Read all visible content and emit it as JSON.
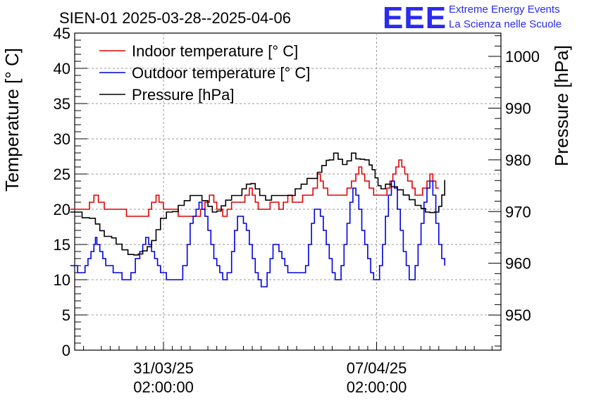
{
  "chart_data": {
    "type": "line",
    "title": "SIEN-01 2025-03-28--2025-04-06",
    "ylabel": "Temperature [° C]",
    "y2label": "Pressure [hPa]",
    "xlabel": "",
    "ylim": [
      0,
      45
    ],
    "y2lim": [
      943.2,
      1004.5
    ],
    "xlim": [
      -60,
      228
    ],
    "grid": true,
    "legend_position": "top-left",
    "y_ticks": [
      0,
      5,
      10,
      15,
      20,
      25,
      30,
      35,
      40,
      45
    ],
    "y_tick_labels": [
      "0",
      "5",
      "10",
      "15",
      "20",
      "25",
      "30",
      "35",
      "40",
      "45"
    ],
    "y2_ticks": [
      950,
      960,
      970,
      980,
      990,
      1000
    ],
    "y2_tick_labels": [
      "950",
      "960",
      "970",
      "980",
      "990",
      "1000"
    ],
    "x_ticks": [
      0,
      144
    ],
    "x_tick_labels": [
      {
        "date": "31/03/25",
        "time": "02:00:00"
      },
      {
        "date": "07/04/25",
        "time": "02:00:00"
      }
    ],
    "series": [
      {
        "name": "Indoor temperature [° C]",
        "color": "#e00000",
        "axis": "left",
        "points": [
          [
            -63,
            20
          ],
          [
            -55,
            20
          ],
          [
            -50,
            21
          ],
          [
            -47,
            22
          ],
          [
            -44,
            21
          ],
          [
            -40,
            20
          ],
          [
            -35,
            20
          ],
          [
            -30,
            20
          ],
          [
            -25,
            19
          ],
          [
            -20,
            19
          ],
          [
            -15,
            19
          ],
          [
            -10,
            20
          ],
          [
            -8,
            21
          ],
          [
            -5,
            22
          ],
          [
            -3,
            21
          ],
          [
            0,
            20
          ],
          [
            5,
            20
          ],
          [
            10,
            19
          ],
          [
            15,
            19
          ],
          [
            20,
            19
          ],
          [
            25,
            20
          ],
          [
            28,
            21
          ],
          [
            31,
            22
          ],
          [
            34,
            21
          ],
          [
            36,
            20
          ],
          [
            40,
            19
          ],
          [
            43,
            20
          ],
          [
            46,
            21
          ],
          [
            49,
            21
          ],
          [
            52,
            21
          ],
          [
            55,
            22
          ],
          [
            58,
            23
          ],
          [
            60,
            22
          ],
          [
            62,
            21
          ],
          [
            64,
            20
          ],
          [
            68,
            20
          ],
          [
            72,
            21
          ],
          [
            75,
            21
          ],
          [
            78,
            20
          ],
          [
            81,
            21
          ],
          [
            84,
            22
          ],
          [
            87,
            21
          ],
          [
            90,
            21
          ],
          [
            94,
            22
          ],
          [
            98,
            22
          ],
          [
            101,
            23
          ],
          [
            104,
            25
          ],
          [
            106,
            24
          ],
          [
            108,
            23
          ],
          [
            111,
            22
          ],
          [
            114,
            22
          ],
          [
            118,
            22
          ],
          [
            121,
            22
          ],
          [
            124,
            23
          ],
          [
            127,
            24
          ],
          [
            130,
            25
          ],
          [
            132,
            26
          ],
          [
            134,
            25
          ],
          [
            136,
            24
          ],
          [
            139,
            23
          ],
          [
            142,
            22
          ],
          [
            145,
            22
          ],
          [
            148,
            22
          ],
          [
            151,
            23
          ],
          [
            153,
            24
          ],
          [
            155,
            25
          ],
          [
            157,
            26
          ],
          [
            159,
            27
          ],
          [
            161,
            26
          ],
          [
            163,
            25
          ],
          [
            165,
            24
          ],
          [
            168,
            23
          ],
          [
            170,
            22
          ],
          [
            172,
            22
          ],
          [
            175,
            23
          ],
          [
            178,
            24
          ],
          [
            180,
            25
          ],
          [
            182,
            24
          ],
          [
            184,
            23
          ],
          [
            186,
            23
          ]
        ]
      },
      {
        "name": "Outdoor temperature [° C]",
        "color": "#0000e0",
        "axis": "left",
        "points": [
          [
            -63,
            12
          ],
          [
            -60,
            12
          ],
          [
            -58,
            11
          ],
          [
            -56,
            11
          ],
          [
            -53,
            12
          ],
          [
            -51,
            13
          ],
          [
            -49,
            14
          ],
          [
            -47,
            15
          ],
          [
            -46,
            16
          ],
          [
            -45,
            15
          ],
          [
            -43,
            14
          ],
          [
            -41,
            13
          ],
          [
            -39,
            12
          ],
          [
            -36,
            12
          ],
          [
            -34,
            11
          ],
          [
            -31,
            11
          ],
          [
            -28,
            10
          ],
          [
            -25,
            10
          ],
          [
            -22,
            11
          ],
          [
            -19,
            13
          ],
          [
            -16,
            14
          ],
          [
            -14,
            15
          ],
          [
            -12,
            16
          ],
          [
            -10,
            15
          ],
          [
            -8,
            14
          ],
          [
            -6,
            13
          ],
          [
            -4,
            12
          ],
          [
            -2,
            11
          ],
          [
            0,
            11
          ],
          [
            2,
            10
          ],
          [
            4,
            10
          ],
          [
            7,
            10
          ],
          [
            10,
            10
          ],
          [
            13,
            12
          ],
          [
            16,
            15
          ],
          [
            18,
            18
          ],
          [
            20,
            19
          ],
          [
            22,
            20
          ],
          [
            24,
            21
          ],
          [
            26,
            20
          ],
          [
            28,
            19
          ],
          [
            30,
            17
          ],
          [
            32,
            15
          ],
          [
            34,
            13
          ],
          [
            36,
            12
          ],
          [
            38,
            11
          ],
          [
            40,
            10
          ],
          [
            43,
            11
          ],
          [
            46,
            14
          ],
          [
            48,
            17
          ],
          [
            50,
            19
          ],
          [
            52,
            19
          ],
          [
            54,
            18
          ],
          [
            56,
            17
          ],
          [
            58,
            15
          ],
          [
            60,
            13
          ],
          [
            62,
            11
          ],
          [
            64,
            10
          ],
          [
            66,
            9
          ],
          [
            68,
            9
          ],
          [
            70,
            11
          ],
          [
            72,
            13
          ],
          [
            74,
            15
          ],
          [
            76,
            15
          ],
          [
            78,
            14
          ],
          [
            80,
            13
          ],
          [
            82,
            12
          ],
          [
            84,
            11
          ],
          [
            86,
            11
          ],
          [
            88,
            11
          ],
          [
            90,
            11
          ],
          [
            92,
            11
          ],
          [
            94,
            11
          ],
          [
            96,
            12
          ],
          [
            98,
            15
          ],
          [
            100,
            18
          ],
          [
            102,
            20
          ],
          [
            104,
            20
          ],
          [
            106,
            19
          ],
          [
            108,
            17
          ],
          [
            110,
            15
          ],
          [
            112,
            13
          ],
          [
            114,
            11
          ],
          [
            116,
            10
          ],
          [
            118,
            10
          ],
          [
            120,
            12
          ],
          [
            122,
            15
          ],
          [
            124,
            18
          ],
          [
            126,
            21
          ],
          [
            128,
            23
          ],
          [
            130,
            22
          ],
          [
            132,
            20
          ],
          [
            134,
            17
          ],
          [
            136,
            15
          ],
          [
            138,
            13
          ],
          [
            140,
            11
          ],
          [
            142,
            10
          ],
          [
            144,
            10
          ],
          [
            146,
            12
          ],
          [
            148,
            15
          ],
          [
            150,
            19
          ],
          [
            152,
            22
          ],
          [
            154,
            24
          ],
          [
            156,
            23
          ],
          [
            158,
            20
          ],
          [
            160,
            17
          ],
          [
            162,
            14
          ],
          [
            164,
            12
          ],
          [
            166,
            10
          ],
          [
            168,
            10
          ],
          [
            170,
            12
          ],
          [
            172,
            15
          ],
          [
            174,
            18
          ],
          [
            176,
            21
          ],
          [
            178,
            23
          ],
          [
            180,
            24
          ],
          [
            182,
            22
          ],
          [
            184,
            18
          ],
          [
            186,
            15
          ],
          [
            188,
            13
          ],
          [
            190,
            12
          ]
        ]
      },
      {
        "name": "Pressure [hPa]",
        "color": "#000000",
        "axis": "right",
        "points": [
          [
            -63,
            969.9
          ],
          [
            -58,
            969.9
          ],
          [
            -55,
            968.8
          ],
          [
            -50,
            968.7
          ],
          [
            -46,
            967.6
          ],
          [
            -43,
            966.3
          ],
          [
            -40,
            965.2
          ],
          [
            -35,
            964.9
          ],
          [
            -32,
            963.7
          ],
          [
            -28,
            962.6
          ],
          [
            -24,
            961.7
          ],
          [
            -20,
            961.6
          ],
          [
            -17,
            961.8
          ],
          [
            -14,
            962.4
          ],
          [
            -11,
            963.2
          ],
          [
            -8,
            964.4
          ],
          [
            -5,
            966.5
          ],
          [
            -2,
            968.7
          ],
          [
            2,
            969.9
          ],
          [
            6,
            970
          ],
          [
            10,
            971.2
          ],
          [
            14,
            972.1
          ],
          [
            18,
            973.1
          ],
          [
            22,
            973.1
          ],
          [
            26,
            972.1
          ],
          [
            30,
            971
          ],
          [
            33,
            969.9
          ],
          [
            36,
            970.1
          ],
          [
            39,
            971.1
          ],
          [
            42,
            972.2
          ],
          [
            46,
            973.1
          ],
          [
            50,
            973.1
          ],
          [
            53,
            974.4
          ],
          [
            56,
            975.3
          ],
          [
            59,
            975.4
          ],
          [
            62,
            974.4
          ],
          [
            65,
            973.1
          ],
          [
            69,
            972.2
          ],
          [
            73,
            973.1
          ],
          [
            77,
            973.1
          ],
          [
            81,
            973.1
          ],
          [
            85,
            973.1
          ],
          [
            89,
            974.4
          ],
          [
            93,
            975.3
          ],
          [
            97,
            976.4
          ],
          [
            101,
            976.4
          ],
          [
            104,
            977.6
          ],
          [
            107,
            978.9
          ],
          [
            110,
            979.9
          ],
          [
            112,
            980
          ],
          [
            115,
            981.3
          ],
          [
            118,
            980.1
          ],
          [
            121,
            979.1
          ],
          [
            124,
            979.8
          ],
          [
            127,
            981.3
          ],
          [
            130,
            980.2
          ],
          [
            133,
            980.1
          ],
          [
            136,
            980
          ],
          [
            139,
            979
          ],
          [
            141,
            978.1
          ],
          [
            143,
            976.5
          ],
          [
            145,
            975
          ],
          [
            147,
            974.4
          ],
          [
            150,
            975.3
          ],
          [
            154,
            974.8
          ],
          [
            158,
            974.2
          ],
          [
            162,
            973.2
          ],
          [
            166,
            972.3
          ],
          [
            170,
            971.2
          ],
          [
            174,
            970.6
          ],
          [
            177,
            969.9
          ],
          [
            180,
            969.8
          ],
          [
            183,
            969.9
          ],
          [
            186,
            971
          ],
          [
            188,
            973.2
          ],
          [
            190,
            976.1
          ]
        ]
      }
    ]
  },
  "logo": {
    "mark": "EEE",
    "line1": "Extreme Energy Events",
    "line2": "La Scienza nelle Scuole"
  }
}
